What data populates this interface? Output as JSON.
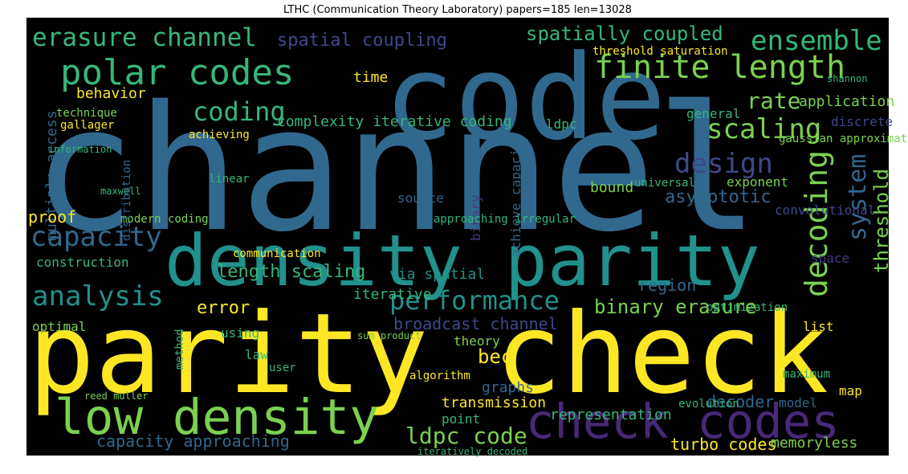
{
  "title": "LTHC (Communication Theory Laboratory) papers=185 len=13028",
  "words": [
    "channel",
    "parity check",
    "code",
    "density parity",
    "check codes",
    "low density",
    "finite length",
    "polar codes",
    "erasure channel",
    "ensemble",
    "coding",
    "scaling",
    "design",
    "capacity",
    "analysis",
    "performance",
    "binary erasure",
    "spatially coupled",
    "spatial coupling",
    "decoding",
    "system",
    "threshold",
    "rate",
    "application",
    "complexity iterative coding",
    "length scaling",
    "broadcast channel",
    "ldpc code",
    "capacity approaching",
    "turbo codes",
    "transmission",
    "bec",
    "error",
    "optimal",
    "time",
    "behavior",
    "multiple access",
    "proof",
    "asymptotic",
    "region",
    "representation",
    "memoryless",
    "decoder",
    "iterative",
    "graphs",
    "theory",
    "threshold saturation",
    "gaussian approximation",
    "modern coding",
    "communication",
    "convolutional",
    "binary",
    "achieve capacity",
    "ldpc",
    "general",
    "exponent",
    "list",
    "method",
    "law",
    "user",
    "model",
    "map",
    "source",
    "bound",
    "universal",
    "maximum",
    "point",
    "using",
    "algorithm",
    "gallager",
    "information",
    "technique",
    "discrete",
    "space",
    "optimization",
    "evolution",
    "reed muller",
    "sum product",
    "via spatial",
    "approaching irregular",
    "shannon",
    "construction",
    "linear",
    "maxwell",
    "distribution",
    "achieving",
    "iteratively decoded"
  ]
}
